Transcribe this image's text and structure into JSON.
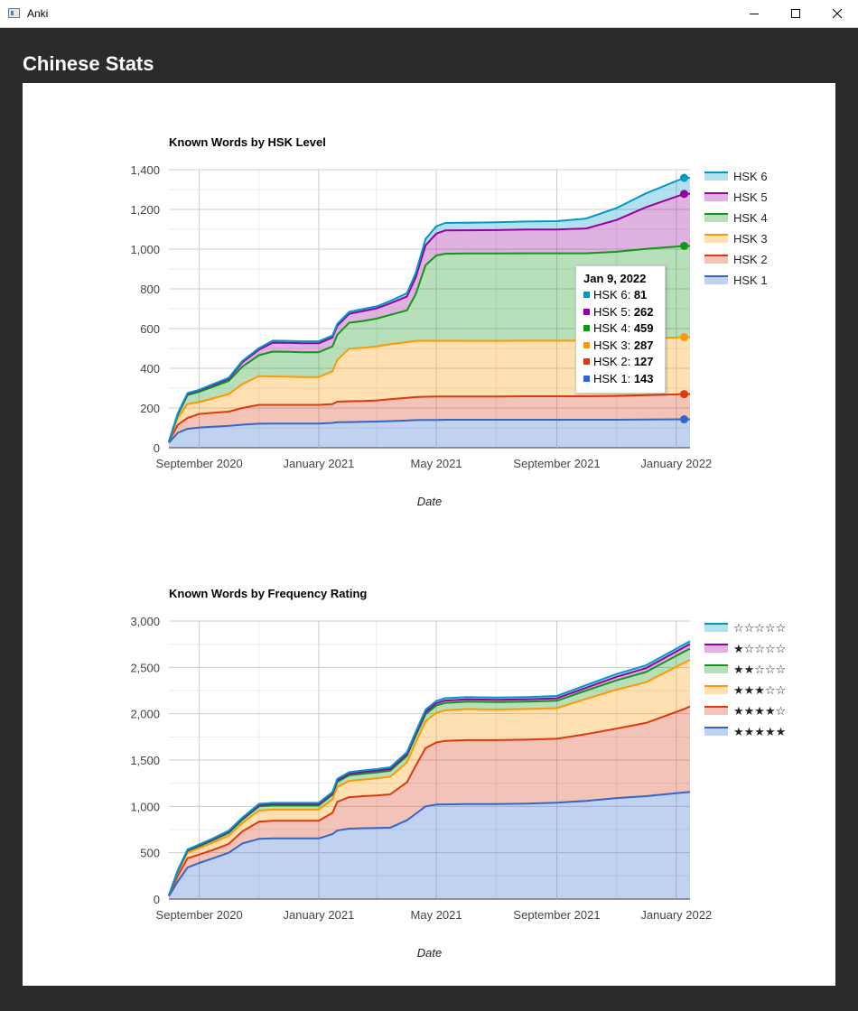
{
  "window": {
    "title": "Anki"
  },
  "page": {
    "heading": "Chinese Stats"
  },
  "tooltip": {
    "date": "Jan 9, 2022",
    "rows": [
      {
        "label": "HSK 6",
        "value": "81",
        "color": "#0099c6"
      },
      {
        "label": "HSK 5",
        "value": "262",
        "color": "#990099"
      },
      {
        "label": "HSK 4",
        "value": "459",
        "color": "#109618"
      },
      {
        "label": "HSK 3",
        "value": "287",
        "color": "#ff9900"
      },
      {
        "label": "HSK 2",
        "value": "127",
        "color": "#dc3912"
      },
      {
        "label": "HSK 1",
        "value": "143",
        "color": "#3366cc"
      }
    ]
  },
  "chart_data": [
    {
      "type": "area",
      "stacked": true,
      "title": "Known Words by HSK Level",
      "xlabel": "Date",
      "ylabel": "",
      "ylim": [
        0,
        1400
      ],
      "yticks": [
        0,
        200,
        400,
        600,
        800,
        1000,
        1200,
        1400
      ],
      "ytick_labels": [
        "0",
        "200",
        "400",
        "600",
        "800",
        "1,000",
        "1,200",
        "1,400"
      ],
      "xlim": [
        "2020-08-01",
        "2022-01-15"
      ],
      "xticks": [
        "2020-09-01",
        "2021-01-01",
        "2021-05-01",
        "2021-09-01",
        "2022-01-01"
      ],
      "xtick_labels": [
        "September 2020",
        "January 2021",
        "May 2021",
        "September 2021",
        "January 2022"
      ],
      "grid": true,
      "legend_position": "right",
      "highlighted_date": "2022-01-09",
      "x": [
        "2020-08-01",
        "2020-08-10",
        "2020-08-20",
        "2020-09-01",
        "2020-09-15",
        "2020-10-01",
        "2020-10-15",
        "2020-11-01",
        "2020-11-15",
        "2020-12-01",
        "2020-12-15",
        "2021-01-01",
        "2021-01-15",
        "2021-01-20",
        "2021-02-01",
        "2021-02-15",
        "2021-03-01",
        "2021-03-15",
        "2021-04-01",
        "2021-04-10",
        "2021-04-20",
        "2021-05-01",
        "2021-05-10",
        "2021-06-01",
        "2021-07-01",
        "2021-08-01",
        "2021-09-01",
        "2021-10-01",
        "2021-11-01",
        "2021-12-01",
        "2022-01-09",
        "2022-01-15"
      ],
      "series": [
        {
          "name": "HSK 1",
          "color": "#3366cc",
          "values": [
            25,
            75,
            95,
            102,
            106,
            110,
            116,
            121,
            122,
            122,
            122,
            122,
            125,
            128,
            129,
            131,
            132,
            134,
            137,
            139,
            140,
            140,
            141,
            141,
            141,
            141,
            141,
            141,
            141,
            142,
            143,
            143
          ]
        },
        {
          "name": "HSK 2",
          "color": "#dc3912",
          "values": [
            5,
            40,
            55,
            68,
            70,
            72,
            84,
            95,
            94,
            94,
            94,
            94,
            95,
            104,
            105,
            104,
            106,
            110,
            114,
            116,
            117,
            118,
            117,
            117,
            117,
            118,
            118,
            118,
            120,
            123,
            127,
            127
          ]
        },
        {
          "name": "HSK 3",
          "color": "#ff9900",
          "values": [
            0,
            35,
            70,
            60,
            72,
            88,
            120,
            145,
            143,
            142,
            140,
            140,
            165,
            210,
            265,
            268,
            272,
            277,
            281,
            283,
            282,
            280,
            281,
            280,
            280,
            280,
            280,
            280,
            281,
            284,
            287,
            287
          ]
        },
        {
          "name": "HSK 4",
          "color": "#109618",
          "values": [
            0,
            15,
            45,
            52,
            59,
            66,
            88,
            105,
            125,
            125,
            125,
            125,
            125,
            127,
            130,
            135,
            140,
            148,
            160,
            235,
            380,
            430,
            438,
            440,
            440,
            440,
            440,
            440,
            445,
            452,
            459,
            459
          ]
        },
        {
          "name": "HSK 5",
          "color": "#990099",
          "values": [
            0,
            5,
            6,
            6,
            8,
            10,
            22,
            28,
            45,
            45,
            45,
            45,
            45,
            45,
            45,
            50,
            52,
            58,
            70,
            85,
            100,
            110,
            117,
            117,
            118,
            120,
            120,
            125,
            160,
            210,
            262,
            262
          ]
        },
        {
          "name": "HSK 6",
          "color": "#0099c6",
          "values": [
            0,
            3,
            4,
            4,
            5,
            6,
            7,
            8,
            10,
            10,
            10,
            10,
            10,
            10,
            10,
            10,
            10,
            12,
            16,
            22,
            32,
            37,
            38,
            38,
            39,
            40,
            42,
            50,
            60,
            70,
            81,
            81
          ]
        }
      ]
    },
    {
      "type": "area",
      "stacked": true,
      "title": "Known Words by Frequency Rating",
      "xlabel": "Date",
      "ylabel": "",
      "ylim": [
        0,
        3000
      ],
      "yticks": [
        0,
        500,
        1000,
        1500,
        2000,
        2500,
        3000
      ],
      "ytick_labels": [
        "0",
        "500",
        "1,000",
        "1,500",
        "2,000",
        "2,500",
        "3,000"
      ],
      "xlim": [
        "2020-08-01",
        "2022-01-15"
      ],
      "xticks": [
        "2020-09-01",
        "2021-01-01",
        "2021-05-01",
        "2021-09-01",
        "2022-01-01"
      ],
      "xtick_labels": [
        "September 2020",
        "January 2021",
        "May 2021",
        "September 2021",
        "January 2022"
      ],
      "grid": true,
      "legend_position": "right",
      "x": [
        "2020-08-01",
        "2020-08-10",
        "2020-08-20",
        "2020-09-01",
        "2020-09-15",
        "2020-10-01",
        "2020-10-15",
        "2020-11-01",
        "2020-11-15",
        "2020-12-01",
        "2020-12-15",
        "2021-01-01",
        "2021-01-15",
        "2021-01-20",
        "2021-02-01",
        "2021-02-15",
        "2021-03-01",
        "2021-03-15",
        "2021-04-01",
        "2021-04-10",
        "2021-04-20",
        "2021-05-01",
        "2021-05-10",
        "2021-06-01",
        "2021-07-01",
        "2021-08-01",
        "2021-09-01",
        "2021-10-01",
        "2021-11-01",
        "2021-12-01",
        "2022-01-09",
        "2022-01-15"
      ],
      "series": [
        {
          "name": "★★★★★",
          "color": "#3366cc",
          "values": [
            30,
            190,
            340,
            390,
            440,
            500,
            600,
            650,
            655,
            655,
            655,
            655,
            700,
            740,
            760,
            765,
            768,
            770,
            850,
            920,
            1000,
            1020,
            1022,
            1025,
            1025,
            1030,
            1040,
            1060,
            1090,
            1110,
            1150,
            1155
          ]
        },
        {
          "name": "★★★★☆",
          "color": "#dc3912",
          "values": [
            5,
            60,
            100,
            90,
            90,
            95,
            130,
            185,
            190,
            190,
            190,
            190,
            230,
            310,
            340,
            345,
            350,
            360,
            410,
            520,
            630,
            670,
            685,
            690,
            690,
            690,
            690,
            720,
            750,
            790,
            900,
            925
          ]
        },
        {
          "name": "★★★☆☆",
          "color": "#ff9900",
          "values": [
            5,
            40,
            60,
            70,
            80,
            90,
            90,
            120,
            120,
            120,
            120,
            120,
            145,
            160,
            175,
            180,
            185,
            190,
            215,
            250,
            290,
            320,
            330,
            335,
            330,
            330,
            330,
            380,
            420,
            440,
            500,
            500
          ]
        },
        {
          "name": "★★☆☆☆",
          "color": "#109618",
          "values": [
            0,
            10,
            20,
            20,
            25,
            30,
            35,
            45,
            45,
            45,
            45,
            45,
            50,
            55,
            60,
            62,
            64,
            66,
            70,
            72,
            75,
            78,
            80,
            80,
            80,
            80,
            80,
            90,
            100,
            110,
            120,
            122
          ]
        },
        {
          "name": "★☆☆☆☆",
          "color": "#990099",
          "values": [
            0,
            5,
            8,
            10,
            10,
            11,
            12,
            14,
            14,
            14,
            14,
            14,
            15,
            16,
            17,
            18,
            18,
            18,
            20,
            22,
            25,
            25,
            25,
            25,
            25,
            25,
            26,
            30,
            38,
            42,
            48,
            50
          ]
        },
        {
          "name": "☆☆☆☆☆",
          "color": "#0099c6",
          "values": [
            0,
            5,
            7,
            10,
            10,
            11,
            12,
            14,
            14,
            14,
            14,
            14,
            15,
            16,
            17,
            18,
            18,
            18,
            20,
            22,
            24,
            25,
            25,
            25,
            25,
            25,
            26,
            28,
            30,
            30,
            30,
            30
          ]
        }
      ]
    }
  ]
}
